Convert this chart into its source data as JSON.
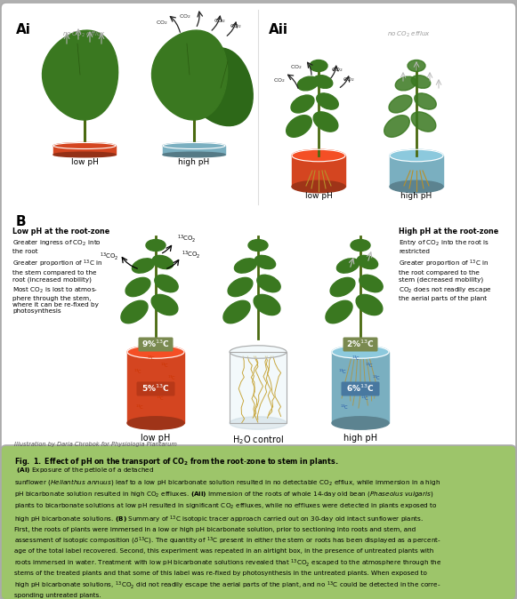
{
  "bg_outer": "#b0b0b0",
  "bg_white_panel": "#ffffff",
  "bg_top_section": "#f0f0f0",
  "bg_caption": "#9dc56a",
  "border_color": "#999999",
  "red_solution": "#d44520",
  "blue_solution": "#7aafc0",
  "stem_label_bg": "#7a8a50",
  "root_label_red_bg": "#b83818",
  "root_label_blue_bg": "#4878a0",
  "illustration_credit": "Illustration by Daria Chrobok for Physiologia Plantarum",
  "caption_title_bold": "Fig. 1. Effect of pH on the transport of CO",
  "caption_title_sub": "2",
  "caption_title_rest": " from the root-zone to stem in plants.",
  "caption_body_lines": [
    " (Ai) Exposure of the petiole of a detached",
    "sunflower (Helianthus annuus) leaf to a low pH bicarbonate solution resulted in no detectable CO₂ efflux, while immersion in a high",
    "pH bicarbonate solution resulted in high CO₂ effluxes. (Aii) Immersion of the roots of whole 14-day old bean (Phaseolus vulgaris)",
    "plants to bicarbonate solutions at low pH resulted in significant CO₂ effluxes, while no effluxes were detected in plants exposed to",
    "high pH bicarbonate solutions. (B) Summary of ¹³C isotopic tracer approach carried out on 30-day old intact sunflower plants.",
    "First, the roots of plants were immersed in a low or high pH bicarbonate solution, prior to sectioning into roots and stem, and",
    "assessment of isotopic composition (δ¹³C). The quantity of ¹³C present in either the stem or roots has been displayed as a percent-",
    "age of the total label recovered. Second, this experiment was repeated in an airtight box, in the presence of untreated plants with",
    "roots immersed in water. Treatment with low pH bicarbonate solutions revealed that ¹³CO₂ escaped to the atmosphere through the",
    "stems of the treated plants and that some of this label was re-fixed by photosynthesis in the untreated plants. When exposed to",
    "high pH bicarbonate solutions, ¹³CO₂ did not readily escape the aerial parts of the plant, and no ¹³C could be detected in the corre-",
    "sponding untreated plants."
  ]
}
